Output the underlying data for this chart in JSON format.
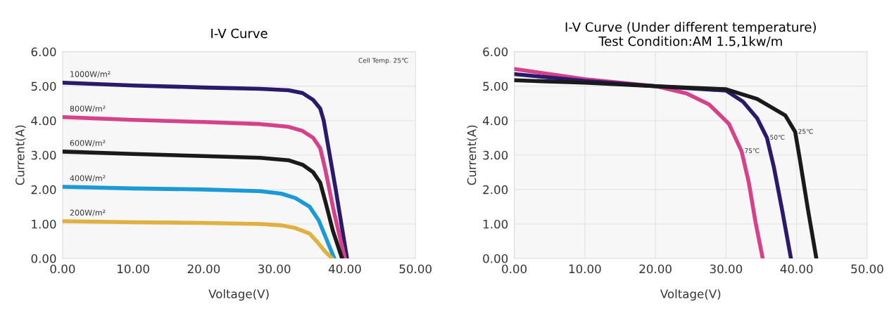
{
  "chart_data": [
    {
      "type": "line",
      "title": "I-V Curve",
      "xlabel": "Voltage(V)",
      "ylabel": "Current(A)",
      "xlim": [
        0,
        50
      ],
      "ylim": [
        0,
        6
      ],
      "xticks": [
        {
          "value": 0,
          "label": "0.00"
        },
        {
          "value": 10,
          "label": "10.00"
        },
        {
          "value": 20,
          "label": "20.00"
        },
        {
          "value": 30,
          "label": "30.00"
        },
        {
          "value": 40,
          "label": "40.00"
        },
        {
          "value": 50,
          "label": "50.00"
        }
      ],
      "yticks": [
        {
          "value": 0,
          "label": "0.00"
        },
        {
          "value": 1,
          "label": "1.00"
        },
        {
          "value": 2,
          "label": "2.00"
        },
        {
          "value": 3,
          "label": "3.00"
        },
        {
          "value": 4,
          "label": "4.00"
        },
        {
          "value": 5,
          "label": "5.00"
        },
        {
          "value": 6,
          "label": "6.00"
        }
      ],
      "grid": "y",
      "marker": "none",
      "line_style": "solid",
      "annotations": [
        "Cell Temp. 25℃"
      ],
      "series": [
        {
          "name": "1000W/m²",
          "color": "#2b1a6b",
          "x": [
            0,
            10,
            20,
            28,
            32,
            34,
            35.5,
            36.5,
            37,
            38.7,
            40.3
          ],
          "values": [
            5.1,
            5.02,
            4.96,
            4.92,
            4.88,
            4.8,
            4.6,
            4.35,
            4.0,
            2.0,
            0
          ]
        },
        {
          "name": "800W/m²",
          "color": "#d6428a",
          "x": [
            0,
            10,
            20,
            28,
            32,
            34,
            35.5,
            36.5,
            37.2,
            38.5,
            40
          ],
          "values": [
            4.1,
            4.02,
            3.96,
            3.9,
            3.82,
            3.7,
            3.5,
            3.2,
            2.6,
            1.3,
            0
          ]
        },
        {
          "name": "600W/m²",
          "color": "#1a1a1a",
          "x": [
            0,
            10,
            20,
            28,
            32,
            34,
            35.5,
            36.5,
            37.3,
            38.3,
            39.6
          ],
          "values": [
            3.1,
            3.03,
            2.97,
            2.92,
            2.85,
            2.72,
            2.5,
            2.2,
            1.6,
            0.8,
            0
          ]
        },
        {
          "name": "400W/m²",
          "color": "#1a9ad6",
          "x": [
            0,
            10,
            20,
            28,
            31,
            33,
            35,
            36.3,
            37.3,
            38.5
          ],
          "values": [
            2.08,
            2.03,
            2.0,
            1.95,
            1.88,
            1.75,
            1.5,
            1.1,
            0.6,
            0
          ]
        },
        {
          "name": "200W/m²",
          "color": "#e0b040",
          "x": [
            0,
            10,
            20,
            28,
            31,
            33,
            35,
            36.2,
            37.2,
            38.2
          ],
          "values": [
            1.08,
            1.05,
            1.03,
            1.0,
            0.96,
            0.88,
            0.72,
            0.45,
            0.2,
            0
          ]
        }
      ]
    },
    {
      "type": "line",
      "title": "I-V Curve (Under different temperature)",
      "subtitle": "Test Condition:AM 1.5,1kw/m",
      "xlabel": "Voltage(V)",
      "ylabel": "Current(A)",
      "xlim": [
        0,
        50
      ],
      "ylim": [
        0,
        6
      ],
      "xticks": [
        {
          "value": 0,
          "label": "0.00"
        },
        {
          "value": 10,
          "label": "10.00"
        },
        {
          "value": 20,
          "label": "20.00"
        },
        {
          "value": 30,
          "label": "30.00"
        },
        {
          "value": 40,
          "label": "40.00"
        },
        {
          "value": 50,
          "label": "50.00"
        }
      ],
      "yticks": [
        {
          "value": 0,
          "label": "0.00"
        },
        {
          "value": 1,
          "label": "1.00"
        },
        {
          "value": 2,
          "label": "2.00"
        },
        {
          "value": 3,
          "label": "3.00"
        },
        {
          "value": 4,
          "label": "4.00"
        },
        {
          "value": 5,
          "label": "5.00"
        },
        {
          "value": 6,
          "label": "6.00"
        }
      ],
      "grid": true,
      "marker": "none",
      "line_style": "solid",
      "series": [
        {
          "name": "75℃",
          "color": "#d6428a",
          "x": [
            0,
            10,
            20,
            24.4,
            27.6,
            30.4,
            32.2,
            33.2,
            34.2,
            35.2
          ],
          "values": [
            5.5,
            5.2,
            5.0,
            4.79,
            4.47,
            3.91,
            3.11,
            2.23,
            1.03,
            0
          ]
        },
        {
          "name": "50℃",
          "color": "#2b1a6b",
          "x": [
            0,
            10,
            20,
            30,
            32.4,
            34.4,
            35.8,
            36.8,
            38,
            39.2
          ],
          "values": [
            5.35,
            5.15,
            5.0,
            4.87,
            4.55,
            4.07,
            3.5,
            2.63,
            1.35,
            0
          ]
        },
        {
          "name": "25℃",
          "color": "#1a1a1a",
          "x": [
            0,
            10,
            20,
            30,
            34.4,
            38.4,
            39.8,
            40.4,
            41.6,
            42.8
          ],
          "values": [
            5.17,
            5.1,
            5.0,
            4.91,
            4.63,
            4.15,
            3.67,
            2.95,
            1.43,
            0
          ]
        }
      ]
    }
  ]
}
